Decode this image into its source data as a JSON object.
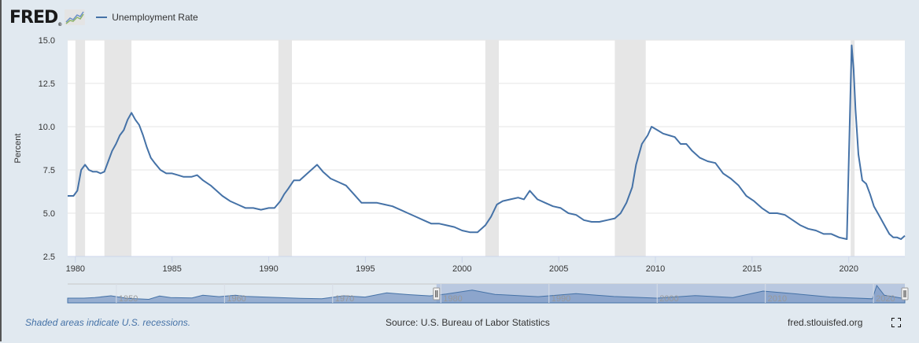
{
  "header": {
    "logo_text": "FRED",
    "logo_registered": "®",
    "logo_icon": "line-chart-icon",
    "legend": [
      {
        "label": "Unemployment Rate",
        "color": "#4572a7"
      }
    ]
  },
  "footer": {
    "recession_note": "Shaded areas indicate U.S. recessions.",
    "source": "Source: U.S. Bureau of Labor Statistics",
    "site": "fred.stlouisfed.org",
    "fullscreen_icon": "fullscreen-icon"
  },
  "colors": {
    "line": "#4572a7",
    "recession": "#e6e6e6",
    "plot_bg": "#ffffff",
    "page_bg": "#e1e9f0",
    "navigator_fill": "#7d99c5",
    "navigator_selected": "#b9c8e0"
  },
  "chart_data": {
    "type": "line",
    "title": "Unemployment Rate",
    "xlabel": "",
    "ylabel": "Percent",
    "ylim": [
      2.5,
      15.0
    ],
    "xlim": [
      1979.6,
      2022.9
    ],
    "yticks": [
      "2.5",
      "5.0",
      "7.5",
      "10.0",
      "12.5",
      "15.0"
    ],
    "xticks": [
      "1980",
      "1985",
      "1990",
      "1995",
      "2000",
      "2005",
      "2010",
      "2015",
      "2020"
    ],
    "grid": true,
    "legend_position": "top-left",
    "recessions": [
      [
        1980.0,
        1980.5
      ],
      [
        1981.5,
        1982.9
      ],
      [
        1990.5,
        1991.2
      ],
      [
        2001.2,
        2001.9
      ],
      [
        2007.9,
        2009.5
      ],
      [
        2020.1,
        2020.3
      ]
    ],
    "series": [
      {
        "name": "Unemployment Rate",
        "x": [
          1979.6,
          1979.9,
          1980.1,
          1980.3,
          1980.5,
          1980.7,
          1980.9,
          1981.1,
          1981.3,
          1981.5,
          1981.7,
          1981.9,
          1982.1,
          1982.3,
          1982.5,
          1982.7,
          1982.9,
          1983.1,
          1983.3,
          1983.5,
          1983.7,
          1983.9,
          1984.1,
          1984.4,
          1984.7,
          1985.0,
          1985.3,
          1985.6,
          1986.0,
          1986.3,
          1986.6,
          1987.0,
          1987.3,
          1987.6,
          1988.0,
          1988.4,
          1988.8,
          1989.2,
          1989.6,
          1990.0,
          1990.3,
          1990.6,
          1990.8,
          1991.0,
          1991.3,
          1991.6,
          1992.0,
          1992.3,
          1992.5,
          1992.8,
          1993.2,
          1993.6,
          1994.0,
          1994.4,
          1994.8,
          1995.2,
          1995.6,
          1996.0,
          1996.4,
          1996.8,
          1997.2,
          1997.6,
          1998.0,
          1998.4,
          1998.8,
          1999.2,
          1999.6,
          2000.0,
          2000.4,
          2000.8,
          2001.2,
          2001.5,
          2001.8,
          2002.1,
          2002.5,
          2002.9,
          2003.2,
          2003.5,
          2003.9,
          2004.3,
          2004.7,
          2005.1,
          2005.5,
          2005.9,
          2006.3,
          2006.7,
          2007.1,
          2007.5,
          2007.9,
          2008.2,
          2008.5,
          2008.8,
          2009.0,
          2009.3,
          2009.6,
          2009.8,
          2010.1,
          2010.4,
          2010.7,
          2011.0,
          2011.3,
          2011.6,
          2011.9,
          2012.3,
          2012.7,
          2013.1,
          2013.5,
          2013.9,
          2014.3,
          2014.7,
          2015.1,
          2015.5,
          2015.9,
          2016.3,
          2016.7,
          2017.1,
          2017.5,
          2017.9,
          2018.3,
          2018.7,
          2019.1,
          2019.5,
          2019.9,
          2020.15,
          2020.25,
          2020.35,
          2020.5,
          2020.7,
          2020.9,
          2021.1,
          2021.3,
          2021.6,
          2021.9,
          2022.1,
          2022.3,
          2022.5,
          2022.7,
          2022.9
        ],
        "values": [
          6.0,
          6.0,
          6.3,
          7.5,
          7.8,
          7.5,
          7.4,
          7.4,
          7.3,
          7.4,
          8.0,
          8.6,
          9.0,
          9.5,
          9.8,
          10.4,
          10.8,
          10.4,
          10.1,
          9.5,
          8.8,
          8.2,
          7.9,
          7.5,
          7.3,
          7.3,
          7.2,
          7.1,
          7.1,
          7.2,
          6.9,
          6.6,
          6.3,
          6.0,
          5.7,
          5.5,
          5.3,
          5.3,
          5.2,
          5.3,
          5.3,
          5.7,
          6.1,
          6.4,
          6.9,
          6.9,
          7.3,
          7.6,
          7.8,
          7.4,
          7.0,
          6.8,
          6.6,
          6.1,
          5.6,
          5.6,
          5.6,
          5.5,
          5.4,
          5.2,
          5.0,
          4.8,
          4.6,
          4.4,
          4.4,
          4.3,
          4.2,
          4.0,
          3.9,
          3.9,
          4.3,
          4.8,
          5.5,
          5.7,
          5.8,
          5.9,
          5.8,
          6.3,
          5.8,
          5.6,
          5.4,
          5.3,
          5.0,
          4.9,
          4.6,
          4.5,
          4.5,
          4.6,
          4.7,
          5.0,
          5.6,
          6.5,
          7.8,
          9.0,
          9.5,
          10.0,
          9.8,
          9.6,
          9.5,
          9.4,
          9.0,
          9.0,
          8.6,
          8.2,
          8.0,
          7.9,
          7.3,
          7.0,
          6.6,
          6.0,
          5.7,
          5.3,
          5.0,
          5.0,
          4.9,
          4.6,
          4.3,
          4.1,
          4.0,
          3.8,
          3.8,
          3.6,
          3.5,
          14.7,
          13.3,
          11.0,
          8.4,
          6.9,
          6.7,
          6.1,
          5.4,
          4.8,
          4.2,
          3.8,
          3.6,
          3.6,
          3.5,
          3.7
        ]
      }
    ],
    "navigator": {
      "xticks": [
        "1950",
        "1960",
        "1970",
        "1980",
        "1990",
        "2000",
        "2010",
        "2020"
      ],
      "selected_range": [
        1979.6,
        2022.9
      ]
    }
  }
}
